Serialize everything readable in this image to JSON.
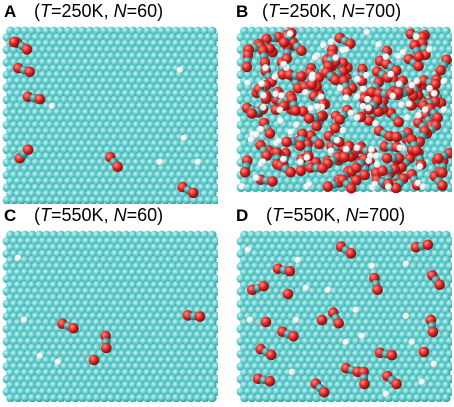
{
  "figure": {
    "panels": [
      {
        "label": "A",
        "T": "250K",
        "N": "60"
      },
      {
        "label": "B",
        "T": "250K",
        "N": "700"
      },
      {
        "label": "C",
        "T": "550K",
        "N": "60"
      },
      {
        "label": "D",
        "T": "550K",
        "N": "700"
      }
    ]
  },
  "colors": {
    "surface": "#5cc8c8",
    "surface_dark": "#2a9a9c",
    "oxygen": "#d32020",
    "carbon": "#3a9898",
    "hydrogen": "#ffffff"
  }
}
